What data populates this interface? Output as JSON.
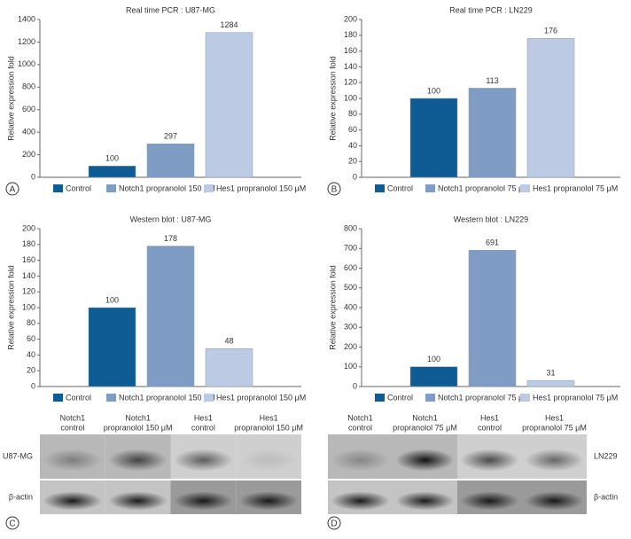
{
  "chart_data": [
    {
      "type": "bar",
      "title": "Real time PCR : U87-MG",
      "ylabel": "Relative expression fold",
      "categories": [
        "Control",
        "Notch1 propranolol 150 μM",
        "Hes1 propranolol 150 μM"
      ],
      "values": [
        100,
        297,
        1284
      ],
      "colors": [
        "#0e5c93",
        "#7e9cc4",
        "#bccbe3"
      ],
      "ylim": [
        0,
        1400
      ],
      "yticks": [
        0,
        200,
        400,
        600,
        800,
        1000,
        1200,
        1400
      ]
    },
    {
      "type": "bar",
      "title": "Real time PCR : LN229",
      "ylabel": "Relative expression fold",
      "categories": [
        "Control",
        "Notch1 propranolol 75 μM",
        "Hes1 propranolol 75 μM"
      ],
      "values": [
        100,
        113,
        176
      ],
      "colors": [
        "#0e5c93",
        "#7e9cc4",
        "#bccbe3"
      ],
      "ylim": [
        0,
        200
      ],
      "yticks": [
        0,
        20,
        40,
        60,
        80,
        100,
        120,
        140,
        160,
        180,
        200
      ]
    },
    {
      "type": "bar",
      "title": "Western blot : U87-MG",
      "ylabel": "Relative expression fold",
      "categories": [
        "Control",
        "Notch1 propranolol 150 μM",
        "Hes1 propranolol 150 μM"
      ],
      "values": [
        100,
        178,
        48
      ],
      "colors": [
        "#0e5c93",
        "#7e9cc4",
        "#bccbe3"
      ],
      "ylim": [
        0,
        200
      ],
      "yticks": [
        0,
        20,
        40,
        60,
        80,
        100,
        120,
        140,
        160,
        180,
        200
      ]
    },
    {
      "type": "bar",
      "title": "Western blot : LN229",
      "ylabel": "Relative expression fold",
      "categories": [
        "Control",
        "Notch1 propranolol 75 μM",
        "Hes1 propranolol 75 μM"
      ],
      "values": [
        100,
        691,
        31
      ],
      "colors": [
        "#0e5c93",
        "#7e9cc4",
        "#bccbe3"
      ],
      "ylim": [
        0,
        800
      ],
      "yticks": [
        0,
        100,
        200,
        300,
        400,
        500,
        600,
        700,
        800
      ]
    }
  ],
  "panels": [
    "A",
    "B",
    "C",
    "D"
  ],
  "blots": [
    {
      "lanes": [
        [
          "Notch1",
          "control"
        ],
        [
          "Notch1",
          "propranolol 150 μM"
        ],
        [
          "Hes1",
          "control"
        ],
        [
          "Hes1",
          "propranolol 150 μM"
        ]
      ],
      "rows": [
        "U87-MG",
        "β-actin"
      ]
    },
    {
      "lanes": [
        [
          "Notch1",
          "control"
        ],
        [
          "Notch1",
          "propranolol 75 μM"
        ],
        [
          "Hes1",
          "control"
        ],
        [
          "Hes1",
          "propranolol 75 μM"
        ]
      ],
      "rows": [
        "LN229",
        "β-actin"
      ]
    }
  ]
}
